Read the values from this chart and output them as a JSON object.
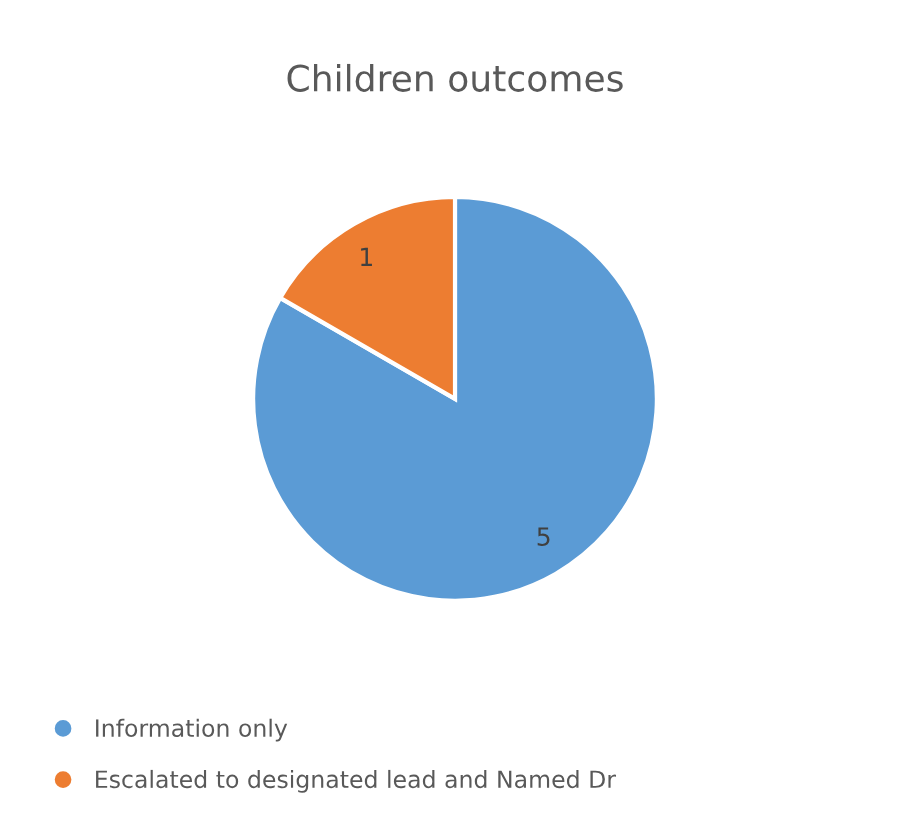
{
  "chart_data": {
    "type": "pie",
    "title": "Children outcomes",
    "categories": [
      "Information only",
      "Escalated to designated lead and Named Dr"
    ],
    "values": [
      5,
      1
    ],
    "colors": [
      "#5b9bd5",
      "#ed7d31"
    ],
    "data_labels": true,
    "legend": "bottom"
  }
}
